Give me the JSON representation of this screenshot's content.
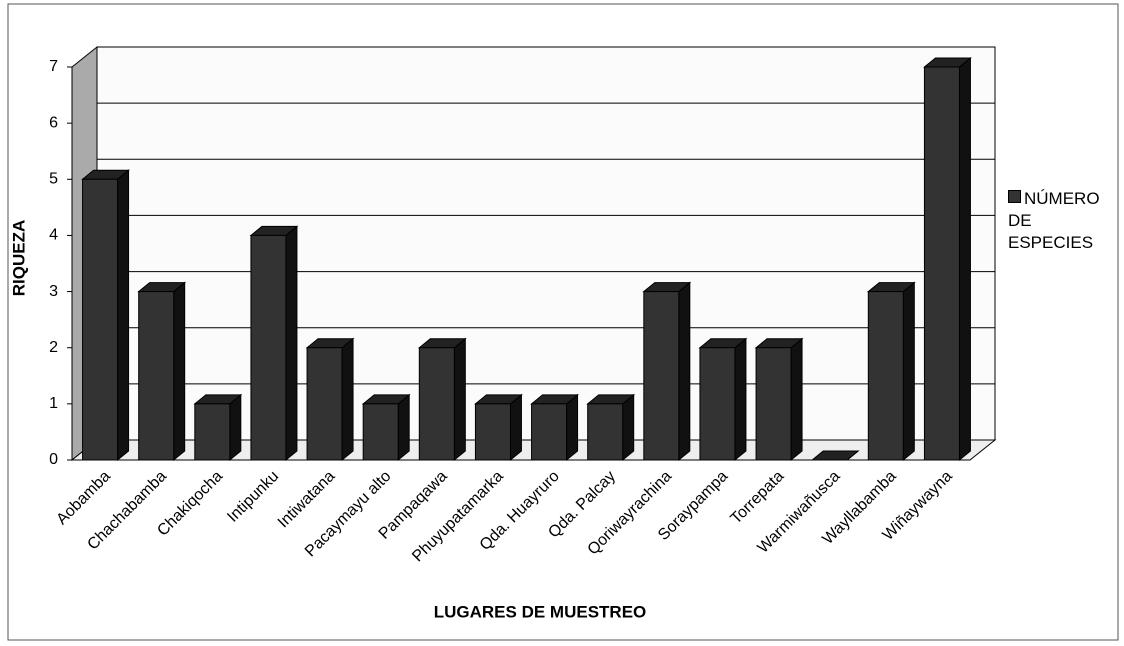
{
  "chart_data": {
    "type": "bar3d",
    "y_label": "RIQUEZA",
    "x_label": "LUGARES DE MUESTREO",
    "categories": [
      "Aobamba",
      "Chachabamba",
      "Chakiqocha",
      "Intipunku",
      "Intiwatana",
      "Pacaymayu alto",
      "Pampaqawa",
      "Phuyupatamarka",
      "Qda. Huayruro",
      "Qda. Palcay",
      "Qoriwayrachina",
      "Soraypampa",
      "Torrepata",
      "Warmiwañusca",
      "Wayllabamba",
      "Wiñaywayna"
    ],
    "series": [
      {
        "name": "NÚMERO DE ESPECIES",
        "color": "#333333",
        "values": [
          5,
          3,
          1,
          4,
          2,
          1,
          2,
          1,
          1,
          1,
          3,
          2,
          2,
          0,
          3,
          7
        ]
      }
    ],
    "ylim": [
      0,
      7
    ],
    "yticks": [
      0,
      1,
      2,
      3,
      4,
      5,
      6,
      7
    ],
    "grid": true,
    "legend": "right"
  }
}
